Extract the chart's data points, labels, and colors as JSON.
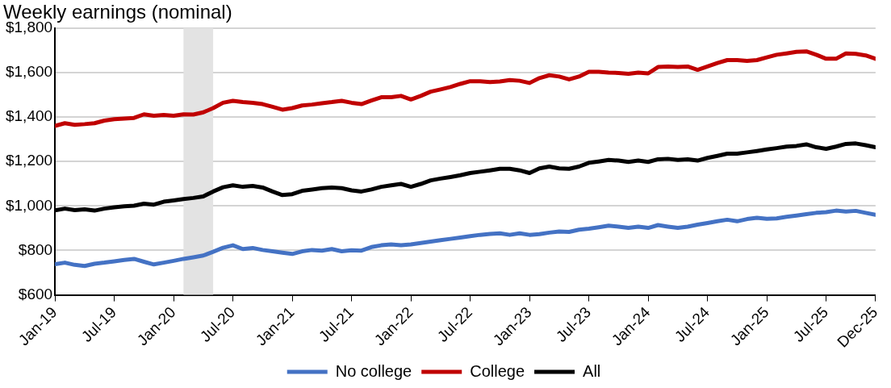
{
  "chart_data": {
    "type": "line",
    "title": "Weekly earnings (nominal)",
    "x": [
      "2019-01",
      "2019-02",
      "2019-03",
      "2019-04",
      "2019-05",
      "2019-06",
      "2019-07",
      "2019-08",
      "2019-09",
      "2019-10",
      "2019-11",
      "2019-12",
      "2020-01",
      "2020-02",
      "2020-03",
      "2020-04",
      "2020-05",
      "2020-06",
      "2020-07",
      "2020-08",
      "2020-09",
      "2020-10",
      "2020-11",
      "2020-12",
      "2021-01",
      "2021-02",
      "2021-03",
      "2021-04",
      "2021-05",
      "2021-06",
      "2021-07",
      "2021-08",
      "2021-09",
      "2021-10",
      "2021-11",
      "2021-12",
      "2022-01",
      "2022-02",
      "2022-03",
      "2022-04",
      "2022-05",
      "2022-06",
      "2022-07",
      "2022-08",
      "2022-09",
      "2022-10",
      "2022-11",
      "2022-12",
      "2023-01",
      "2023-02",
      "2023-03",
      "2023-04",
      "2023-05",
      "2023-06",
      "2023-07",
      "2023-08",
      "2023-09",
      "2023-10",
      "2023-11",
      "2023-12",
      "2024-01",
      "2024-02",
      "2024-03",
      "2024-04",
      "2024-05",
      "2024-06",
      "2024-07",
      "2024-08",
      "2024-09",
      "2024-10",
      "2024-11",
      "2024-12",
      "2025-01",
      "2025-02",
      "2025-03",
      "2025-04",
      "2025-05",
      "2025-06",
      "2025-07",
      "2025-08",
      "2025-09",
      "2025-10",
      "2025-11",
      "2025-12"
    ],
    "series": [
      {
        "name": "No college",
        "color": "#4472c4",
        "values": [
          738,
          745,
          735,
          730,
          740,
          745,
          751,
          757,
          762,
          749,
          737,
          745,
          753,
          762,
          769,
          777,
          794,
          812,
          823,
          806,
          811,
          802,
          796,
          790,
          784,
          796,
          802,
          799,
          806,
          796,
          801,
          799,
          815,
          823,
          827,
          823,
          827,
          833,
          840,
          846,
          852,
          858,
          864,
          870,
          874,
          877,
          870,
          877,
          870,
          873,
          880,
          885,
          883,
          893,
          898,
          904,
          911,
          907,
          901,
          907,
          901,
          914,
          907,
          901,
          907,
          916,
          923,
          931,
          938,
          931,
          941,
          947,
          942,
          944,
          951,
          957,
          963,
          969,
          972,
          979,
          975,
          978,
          969,
          960
        ]
      },
      {
        "name": "College",
        "color": "#c00000",
        "values": [
          1360,
          1372,
          1365,
          1368,
          1372,
          1384,
          1390,
          1393,
          1396,
          1412,
          1406,
          1409,
          1406,
          1412,
          1411,
          1421,
          1440,
          1464,
          1473,
          1467,
          1464,
          1458,
          1446,
          1433,
          1440,
          1452,
          1456,
          1462,
          1467,
          1473,
          1464,
          1458,
          1474,
          1489,
          1489,
          1495,
          1479,
          1495,
          1514,
          1524,
          1535,
          1549,
          1561,
          1561,
          1557,
          1560,
          1566,
          1563,
          1553,
          1575,
          1588,
          1582,
          1569,
          1582,
          1603,
          1603,
          1600,
          1598,
          1594,
          1600,
          1596,
          1625,
          1627,
          1625,
          1627,
          1612,
          1627,
          1643,
          1656,
          1656,
          1652,
          1656,
          1668,
          1680,
          1686,
          1693,
          1695,
          1680,
          1662,
          1662,
          1686,
          1684,
          1677,
          1662
        ]
      },
      {
        "name": "All",
        "color": "#000000",
        "values": [
          980,
          988,
          981,
          985,
          979,
          988,
          994,
          998,
          1001,
          1010,
          1006,
          1019,
          1025,
          1031,
          1036,
          1043,
          1065,
          1084,
          1093,
          1086,
          1090,
          1083,
          1065,
          1049,
          1053,
          1068,
          1074,
          1080,
          1083,
          1080,
          1070,
          1065,
          1074,
          1086,
          1093,
          1099,
          1086,
          1099,
          1115,
          1123,
          1130,
          1138,
          1148,
          1154,
          1160,
          1167,
          1167,
          1160,
          1148,
          1169,
          1177,
          1169,
          1167,
          1177,
          1194,
          1200,
          1207,
          1204,
          1198,
          1204,
          1198,
          1210,
          1212,
          1207,
          1210,
          1204,
          1216,
          1225,
          1235,
          1235,
          1241,
          1247,
          1254,
          1260,
          1267,
          1270,
          1277,
          1264,
          1257,
          1267,
          1279,
          1281,
          1273,
          1264
        ]
      }
    ],
    "xlim": [
      "2019-01",
      "2025-12"
    ],
    "xticks": [
      {
        "value": "2019-01",
        "label": "Jan-19"
      },
      {
        "value": "2019-07",
        "label": "Jul-19"
      },
      {
        "value": "2020-01",
        "label": "Jan-20"
      },
      {
        "value": "2020-07",
        "label": "Jul-20"
      },
      {
        "value": "2021-01",
        "label": "Jan-21"
      },
      {
        "value": "2021-07",
        "label": "Jul-21"
      },
      {
        "value": "2022-01",
        "label": "Jan-22"
      },
      {
        "value": "2022-07",
        "label": "Jul-22"
      },
      {
        "value": "2023-01",
        "label": "Jan-23"
      },
      {
        "value": "2023-07",
        "label": "Jul-23"
      },
      {
        "value": "2024-01",
        "label": "Jan-24"
      },
      {
        "value": "2024-07",
        "label": "Jul-24"
      },
      {
        "value": "2025-01",
        "label": "Jan-25"
      },
      {
        "value": "2025-07",
        "label": "Jul-25"
      },
      {
        "value": "2025-12",
        "label": "Dec-25"
      }
    ],
    "ylim": [
      600,
      1800
    ],
    "yticks": [
      {
        "value": 600,
        "label": "$600"
      },
      {
        "value": 800,
        "label": "$800"
      },
      {
        "value": 1000,
        "label": "$1,000"
      },
      {
        "value": 1200,
        "label": "$1,200"
      },
      {
        "value": 1400,
        "label": "$1,400"
      },
      {
        "value": 1600,
        "label": "$1,600"
      },
      {
        "value": 1800,
        "label": "$1,800"
      }
    ],
    "bands": [
      {
        "axis": "x",
        "from": "2020-02",
        "to": "2020-05",
        "color": "#e3e3e3"
      }
    ],
    "grid": "y",
    "legend": "bottom",
    "marker": "none",
    "line_style": "solid"
  }
}
